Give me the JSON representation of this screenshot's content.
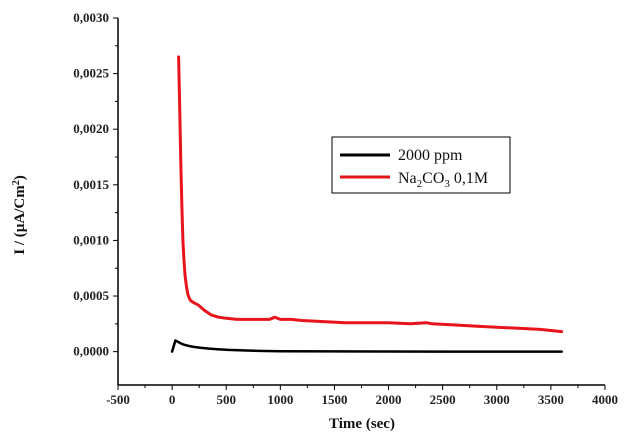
{
  "chart_data": {
    "type": "line",
    "title": "",
    "xlabel": "Time (sec)",
    "ylabel": "I / (µA/Cm²)",
    "ylabel_parts": {
      "main": "I / (µA/Cm",
      "sup": "2",
      "close": ")"
    },
    "xlim": [
      -500,
      4000
    ],
    "ylim": [
      -0.0003,
      0.003
    ],
    "x_ticks": [
      "-500",
      "0",
      "500",
      "1000",
      "1500",
      "2000",
      "2500",
      "3000",
      "3500",
      "4000"
    ],
    "x_tick_values": [
      -500,
      0,
      500,
      1000,
      1500,
      2000,
      2500,
      3000,
      3500,
      4000
    ],
    "y_ticks": [
      "0,0000",
      "0,0005",
      "0,0010",
      "0,0015",
      "0,0020",
      "0,0025",
      "0,0030"
    ],
    "y_tick_values": [
      0,
      0.0005,
      0.001,
      0.0015,
      0.002,
      0.0025,
      0.003
    ],
    "grid": false,
    "legend_position": "upper-right",
    "series": [
      {
        "name": "2000 ppm",
        "legend_parts": {
          "main": "2000 ppm"
        },
        "color": "#000000",
        "x": [
          0,
          30,
          60,
          90,
          120,
          160,
          200,
          260,
          330,
          420,
          520,
          650,
          800,
          1000,
          1500,
          2000,
          2500,
          3000,
          3600
        ],
        "y": [
          0.0,
          0.0001,
          8.5e-05,
          7e-05,
          6e-05,
          5e-05,
          4.3e-05,
          3.5e-05,
          2.8e-05,
          2.2e-05,
          1.6e-05,
          1.1e-05,
          7e-06,
          4e-06,
          2e-06,
          1e-06,
          0.0,
          0.0,
          0.0
        ]
      },
      {
        "name": "Na₂CO₃ 0,1M",
        "legend_parts": {
          "a": "Na",
          "sub1": "2",
          "b": "CO",
          "sub2": "3",
          "c": " 0,1M"
        },
        "color": "#e8141b",
        "x": [
          60,
          70,
          80,
          90,
          100,
          110,
          120,
          135,
          150,
          170,
          200,
          240,
          300,
          360,
          430,
          500,
          600,
          700,
          800,
          900,
          950,
          1000,
          1100,
          1200,
          1400,
          1600,
          1800,
          2000,
          2200,
          2350,
          2400,
          2600,
          2800,
          3000,
          3200,
          3400,
          3600
        ],
        "y": [
          0.00265,
          0.0022,
          0.0017,
          0.0013,
          0.001,
          0.00082,
          0.00068,
          0.00057,
          0.0005,
          0.00046,
          0.00044,
          0.00042,
          0.00037,
          0.00033,
          0.00031,
          0.0003,
          0.00029,
          0.00029,
          0.00029,
          0.00029,
          0.00031,
          0.00029,
          0.00029,
          0.00028,
          0.00027,
          0.00026,
          0.00026,
          0.00026,
          0.00025,
          0.00026,
          0.00025,
          0.00024,
          0.00023,
          0.00022,
          0.00021,
          0.0002,
          0.00018
        ]
      }
    ]
  }
}
